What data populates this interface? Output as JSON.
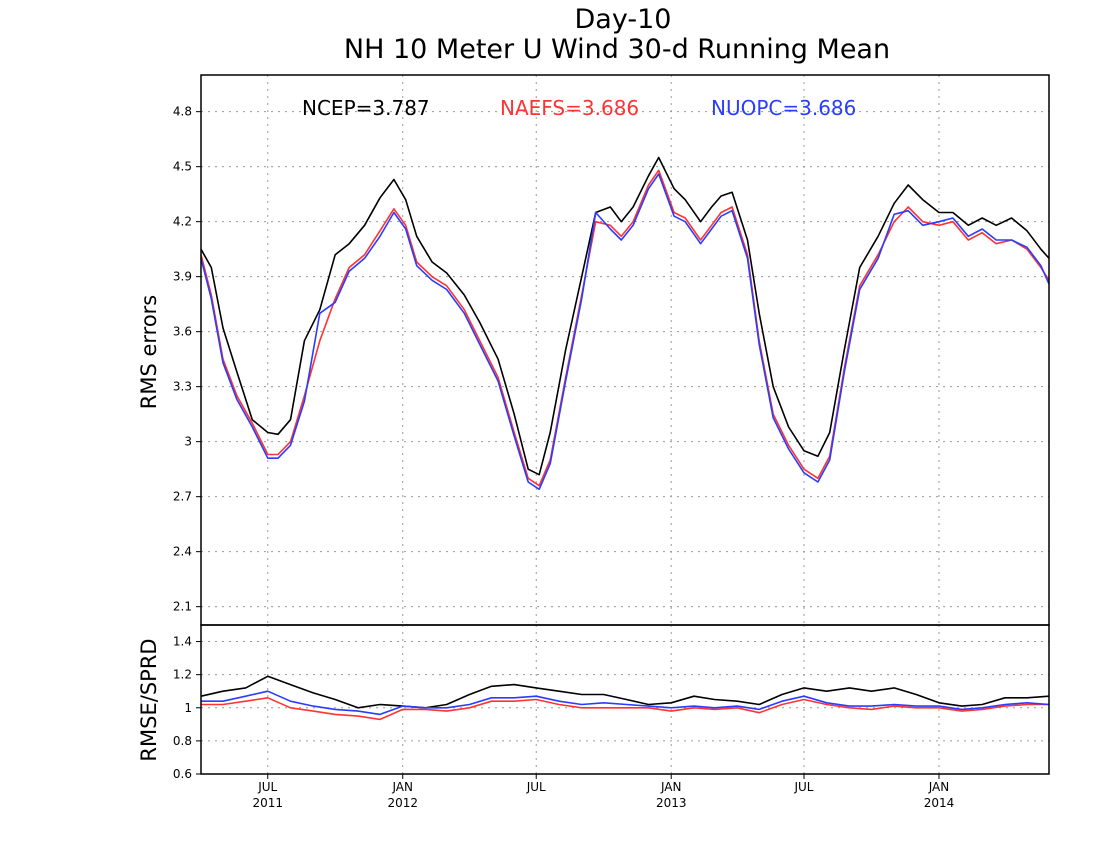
{
  "chart_data": {
    "type": "line",
    "title": "Day-10",
    "subtitle": "NH 10 Meter U Wind 30-d Running Mean",
    "x_axis": {
      "range": [
        "2011-04-01",
        "2014-05-31"
      ],
      "ticks": [
        {
          "date": "2011-07-01",
          "label": "JUL",
          "year": "2011"
        },
        {
          "date": "2012-01-01",
          "label": "JAN",
          "year": "2012"
        },
        {
          "date": "2012-07-01",
          "label": "JUL",
          "year": ""
        },
        {
          "date": "2013-01-01",
          "label": "JAN",
          "year": "2013"
        },
        {
          "date": "2013-07-01",
          "label": "JUL",
          "year": ""
        },
        {
          "date": "2014-01-01",
          "label": "JAN",
          "year": "2014"
        }
      ]
    },
    "panels": [
      {
        "name": "rms",
        "ylabel": "RMS errors",
        "ylim": [
          2.0,
          5.0
        ],
        "yticks": [
          2.1,
          2.4,
          2.7,
          3,
          3.3,
          3.6,
          3.9,
          4.2,
          4.5,
          4.8
        ],
        "ytick_labels": [
          "2.1",
          "2.4",
          "2.7",
          "3",
          "3.3",
          "3.6",
          "3.9",
          "4.2",
          "4.5",
          "4.8"
        ],
        "grid": true,
        "series": [
          {
            "name": "NCEP",
            "color": "#000000",
            "x": [
              "2011-04-01",
              "2011-04-15",
              "2011-05-01",
              "2011-05-20",
              "2011-06-10",
              "2011-07-01",
              "2011-07-15",
              "2011-08-01",
              "2011-08-20",
              "2011-09-10",
              "2011-10-01",
              "2011-10-20",
              "2011-11-10",
              "2011-12-01",
              "2011-12-20",
              "2012-01-05",
              "2012-01-20",
              "2012-02-10",
              "2012-03-01",
              "2012-03-25",
              "2012-04-15",
              "2012-05-10",
              "2012-06-01",
              "2012-06-20",
              "2012-07-05",
              "2012-07-20",
              "2012-08-10",
              "2012-09-01",
              "2012-09-20",
              "2012-10-10",
              "2012-10-25",
              "2012-11-10",
              "2012-12-01",
              "2012-12-15",
              "2013-01-05",
              "2013-01-20",
              "2013-02-10",
              "2013-02-25",
              "2013-03-10",
              "2013-03-25",
              "2013-04-15",
              "2013-05-01",
              "2013-05-20",
              "2013-06-10",
              "2013-07-01",
              "2013-07-20",
              "2013-08-05",
              "2013-08-25",
              "2013-09-15",
              "2013-10-10",
              "2013-11-01",
              "2013-11-20",
              "2013-12-10",
              "2014-01-01",
              "2014-01-20",
              "2014-02-10",
              "2014-03-01",
              "2014-03-20",
              "2014-04-10",
              "2014-05-01",
              "2014-05-20",
              "2014-05-31"
            ],
            "values": [
              4.05,
              3.95,
              3.62,
              3.38,
              3.12,
              3.05,
              3.04,
              3.12,
              3.55,
              3.72,
              4.02,
              4.08,
              4.18,
              4.33,
              4.43,
              4.32,
              4.12,
              3.98,
              3.92,
              3.8,
              3.65,
              3.45,
              3.15,
              2.85,
              2.82,
              3.05,
              3.5,
              3.9,
              4.25,
              4.28,
              4.2,
              4.28,
              4.45,
              4.55,
              4.38,
              4.32,
              4.2,
              4.28,
              4.34,
              4.36,
              4.1,
              3.7,
              3.3,
              3.08,
              2.95,
              2.92,
              3.05,
              3.5,
              3.95,
              4.12,
              4.3,
              4.4,
              4.32,
              4.25,
              4.25,
              4.18,
              4.22,
              4.18,
              4.22,
              4.15,
              4.05,
              4.0
            ]
          },
          {
            "name": "NAEFS",
            "color": "#ff3333",
            "x": [
              "2011-04-01",
              "2011-04-15",
              "2011-05-01",
              "2011-05-20",
              "2011-06-10",
              "2011-07-01",
              "2011-07-15",
              "2011-08-01",
              "2011-08-20",
              "2011-09-10",
              "2011-10-01",
              "2011-10-20",
              "2011-11-10",
              "2011-12-01",
              "2011-12-20",
              "2012-01-05",
              "2012-01-20",
              "2012-02-10",
              "2012-03-01",
              "2012-03-25",
              "2012-04-15",
              "2012-05-10",
              "2012-06-01",
              "2012-06-20",
              "2012-07-05",
              "2012-07-20",
              "2012-08-10",
              "2012-09-01",
              "2012-09-20",
              "2012-10-10",
              "2012-10-25",
              "2012-11-10",
              "2012-12-01",
              "2012-12-15",
              "2013-01-05",
              "2013-01-20",
              "2013-02-10",
              "2013-02-25",
              "2013-03-10",
              "2013-03-25",
              "2013-04-15",
              "2013-05-01",
              "2013-05-20",
              "2013-06-10",
              "2013-07-01",
              "2013-07-20",
              "2013-08-05",
              "2013-08-25",
              "2013-09-15",
              "2013-10-10",
              "2013-11-01",
              "2013-11-20",
              "2013-12-10",
              "2014-01-01",
              "2014-01-20",
              "2014-02-10",
              "2014-03-01",
              "2014-03-20",
              "2014-04-10",
              "2014-05-01",
              "2014-05-20",
              "2014-05-31"
            ],
            "values": [
              4.02,
              3.8,
              3.45,
              3.25,
              3.1,
              2.93,
              2.93,
              3.0,
              3.25,
              3.55,
              3.78,
              3.95,
              4.02,
              4.15,
              4.27,
              4.18,
              3.98,
              3.9,
              3.85,
              3.72,
              3.55,
              3.35,
              3.05,
              2.8,
              2.76,
              2.9,
              3.35,
              3.8,
              4.2,
              4.18,
              4.12,
              4.2,
              4.4,
              4.48,
              4.25,
              4.22,
              4.1,
              4.18,
              4.25,
              4.28,
              4.02,
              3.55,
              3.15,
              2.98,
              2.85,
              2.8,
              2.92,
              3.4,
              3.85,
              4.02,
              4.2,
              4.28,
              4.2,
              4.18,
              4.2,
              4.1,
              4.14,
              4.08,
              4.1,
              4.05,
              3.95,
              3.88
            ]
          },
          {
            "name": "NUOPC",
            "color": "#2a3cff",
            "x": [
              "2011-04-01",
              "2011-04-15",
              "2011-05-01",
              "2011-05-20",
              "2011-06-10",
              "2011-07-01",
              "2011-07-15",
              "2011-08-01",
              "2011-08-20",
              "2011-09-10",
              "2011-10-01",
              "2011-10-20",
              "2011-11-10",
              "2011-12-01",
              "2011-12-20",
              "2012-01-05",
              "2012-01-20",
              "2012-02-10",
              "2012-03-01",
              "2012-03-25",
              "2012-04-15",
              "2012-05-10",
              "2012-06-01",
              "2012-06-20",
              "2012-07-05",
              "2012-07-20",
              "2012-08-10",
              "2012-09-01",
              "2012-09-20",
              "2012-10-10",
              "2012-10-25",
              "2012-11-10",
              "2012-12-01",
              "2012-12-15",
              "2013-01-05",
              "2013-01-20",
              "2013-02-10",
              "2013-02-25",
              "2013-03-10",
              "2013-03-25",
              "2013-04-15",
              "2013-05-01",
              "2013-05-20",
              "2013-06-10",
              "2013-07-01",
              "2013-07-20",
              "2013-08-05",
              "2013-08-25",
              "2013-09-15",
              "2013-10-10",
              "2013-11-01",
              "2013-11-20",
              "2013-12-10",
              "2014-01-01",
              "2014-01-20",
              "2014-02-10",
              "2014-03-01",
              "2014-03-20",
              "2014-04-10",
              "2014-05-01",
              "2014-05-20",
              "2014-05-31"
            ],
            "values": [
              4.0,
              3.78,
              3.43,
              3.23,
              3.08,
              2.91,
              2.91,
              2.98,
              3.22,
              3.7,
              3.76,
              3.93,
              4.0,
              4.12,
              4.25,
              4.16,
              3.96,
              3.88,
              3.83,
              3.7,
              3.53,
              3.33,
              3.03,
              2.78,
              2.74,
              2.88,
              3.33,
              3.78,
              4.25,
              4.16,
              4.1,
              4.18,
              4.38,
              4.46,
              4.23,
              4.2,
              4.08,
              4.16,
              4.23,
              4.26,
              4.0,
              3.53,
              3.13,
              2.96,
              2.83,
              2.78,
              2.9,
              3.38,
              3.83,
              4.0,
              4.24,
              4.26,
              4.18,
              4.2,
              4.22,
              4.12,
              4.16,
              4.1,
              4.1,
              4.06,
              3.96,
              3.86
            ]
          }
        ],
        "annotations": [
          {
            "text": "NCEP=3.787",
            "color": "#000000"
          },
          {
            "text": "NAEFS=3.686",
            "color": "#ff3333"
          },
          {
            "text": "NUOPC=3.686",
            "color": "#2a3cff"
          }
        ]
      },
      {
        "name": "ratio",
        "ylabel": "RMSE/SPRD",
        "ylim": [
          0.6,
          1.5
        ],
        "yticks": [
          0.6,
          0.8,
          1,
          1.2,
          1.4
        ],
        "ytick_labels": [
          "0.6",
          "0.8",
          "1",
          "1.2",
          "1.4"
        ],
        "grid": true,
        "series": [
          {
            "name": "NCEP",
            "color": "#000000",
            "x": [
              "2011-04-01",
              "2011-05-01",
              "2011-06-01",
              "2011-07-01",
              "2011-08-01",
              "2011-09-01",
              "2011-10-01",
              "2011-11-01",
              "2011-12-01",
              "2012-01-01",
              "2012-02-01",
              "2012-03-01",
              "2012-04-01",
              "2012-05-01",
              "2012-06-01",
              "2012-07-01",
              "2012-08-01",
              "2012-09-01",
              "2012-10-01",
              "2012-11-01",
              "2012-12-01",
              "2013-01-01",
              "2013-02-01",
              "2013-03-01",
              "2013-04-01",
              "2013-05-01",
              "2013-06-01",
              "2013-07-01",
              "2013-08-01",
              "2013-09-01",
              "2013-10-01",
              "2013-11-01",
              "2013-12-01",
              "2014-01-01",
              "2014-02-01",
              "2014-03-01",
              "2014-04-01",
              "2014-05-01",
              "2014-05-31"
            ],
            "values": [
              1.07,
              1.1,
              1.12,
              1.19,
              1.14,
              1.09,
              1.05,
              1.0,
              1.02,
              1.01,
              1.0,
              1.02,
              1.08,
              1.13,
              1.14,
              1.12,
              1.1,
              1.08,
              1.08,
              1.05,
              1.02,
              1.03,
              1.07,
              1.05,
              1.04,
              1.02,
              1.08,
              1.12,
              1.1,
              1.12,
              1.1,
              1.12,
              1.08,
              1.03,
              1.01,
              1.02,
              1.06,
              1.06,
              1.07
            ]
          },
          {
            "name": "NAEFS",
            "color": "#ff3333",
            "x": [
              "2011-04-01",
              "2011-05-01",
              "2011-06-01",
              "2011-07-01",
              "2011-08-01",
              "2011-09-01",
              "2011-10-01",
              "2011-11-01",
              "2011-12-01",
              "2012-01-01",
              "2012-02-01",
              "2012-03-01",
              "2012-04-01",
              "2012-05-01",
              "2012-06-01",
              "2012-07-01",
              "2012-08-01",
              "2012-09-01",
              "2012-10-01",
              "2012-11-01",
              "2012-12-01",
              "2013-01-01",
              "2013-02-01",
              "2013-03-01",
              "2013-04-01",
              "2013-05-01",
              "2013-06-01",
              "2013-07-01",
              "2013-08-01",
              "2013-09-01",
              "2013-10-01",
              "2013-11-01",
              "2013-12-01",
              "2014-01-01",
              "2014-02-01",
              "2014-03-01",
              "2014-04-01",
              "2014-05-01",
              "2014-05-31"
            ],
            "values": [
              1.02,
              1.02,
              1.04,
              1.06,
              1.0,
              0.98,
              0.96,
              0.95,
              0.93,
              0.99,
              0.99,
              0.98,
              1.0,
              1.04,
              1.04,
              1.05,
              1.02,
              1.0,
              1.0,
              1.0,
              1.0,
              0.98,
              1.0,
              0.99,
              1.0,
              0.97,
              1.02,
              1.05,
              1.02,
              1.0,
              0.99,
              1.01,
              1.0,
              1.0,
              0.98,
              0.99,
              1.01,
              1.02,
              1.02
            ]
          },
          {
            "name": "NUOPC",
            "color": "#2a3cff",
            "x": [
              "2011-04-01",
              "2011-05-01",
              "2011-06-01",
              "2011-07-01",
              "2011-08-01",
              "2011-09-01",
              "2011-10-01",
              "2011-11-01",
              "2011-12-01",
              "2012-01-01",
              "2012-02-01",
              "2012-03-01",
              "2012-04-01",
              "2012-05-01",
              "2012-06-01",
              "2012-07-01",
              "2012-08-01",
              "2012-09-01",
              "2012-10-01",
              "2012-11-01",
              "2012-12-01",
              "2013-01-01",
              "2013-02-01",
              "2013-03-01",
              "2013-04-01",
              "2013-05-01",
              "2013-06-01",
              "2013-07-01",
              "2013-08-01",
              "2013-09-01",
              "2013-10-01",
              "2013-11-01",
              "2013-12-01",
              "2014-01-01",
              "2014-02-01",
              "2014-03-01",
              "2014-04-01",
              "2014-05-01",
              "2014-05-31"
            ],
            "values": [
              1.04,
              1.04,
              1.07,
              1.1,
              1.04,
              1.01,
              0.99,
              0.98,
              0.96,
              1.01,
              1.0,
              1.0,
              1.02,
              1.06,
              1.06,
              1.07,
              1.04,
              1.02,
              1.03,
              1.02,
              1.01,
              1.0,
              1.01,
              1.0,
              1.01,
              0.99,
              1.04,
              1.07,
              1.03,
              1.01,
              1.01,
              1.02,
              1.01,
              1.01,
              0.99,
              1.0,
              1.02,
              1.03,
              1.02
            ]
          }
        ]
      }
    ]
  }
}
